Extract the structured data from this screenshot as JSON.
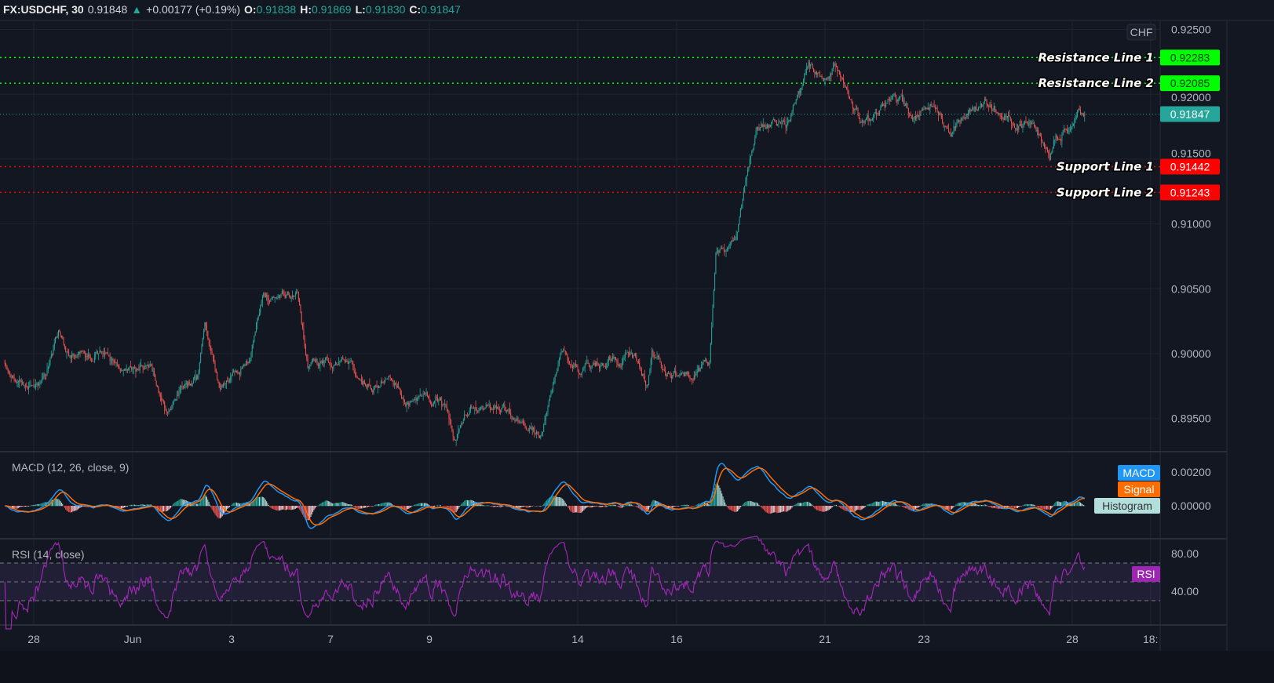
{
  "header": {
    "symbol": "FX:USDCHF, 30",
    "last": "0.91848",
    "change": "+0.00177 (+0.19%)",
    "o_label": "O:",
    "o": "0.91838",
    "h_label": "H:",
    "h": "0.91869",
    "l_label": "L:",
    "l": "0.91830",
    "c_label": "C:",
    "c": "0.91847"
  },
  "currency_badge": "CHF",
  "colors": {
    "background": "#131722",
    "up": "#26a69a",
    "down": "#ef5350",
    "macd": "#2196f3",
    "signal": "#ff6d00",
    "rsi": "#9c27b0",
    "resistance": "#00ff00",
    "support": "#ff0000",
    "last_price": "#26a69a"
  },
  "chart_data": [
    {
      "type": "candlestick",
      "title": "FX:USDCHF, 30",
      "price_axis": {
        "ticks": [
          "0.92500",
          "0.92000",
          "0.91500",
          "0.91000",
          "0.90500",
          "0.90000",
          "0.89500"
        ],
        "range": [
          0.8925,
          0.926
        ]
      },
      "time_axis": {
        "ticks": [
          {
            "label": "28",
            "at": "May 28 00:00"
          },
          {
            "label": "Jun",
            "at": "Jun 1 00:00"
          },
          {
            "label": "3",
            "at": "Jun 3 00:00"
          },
          {
            "label": "7",
            "at": "Jun 7 00:00"
          },
          {
            "label": "9",
            "at": "Jun 9 00:00"
          },
          {
            "label": "14",
            "at": "Jun 14 00:00"
          },
          {
            "label": "16",
            "at": "Jun 16 00:00"
          },
          {
            "label": "21",
            "at": "Jun 21 00:00"
          },
          {
            "label": "23",
            "at": "Jun 23 00:00"
          },
          {
            "label": "28",
            "at": "Jun 28 00:00"
          },
          {
            "label": "18:",
            "at": "Jun 29 14:00"
          }
        ]
      },
      "approx_close_path": [
        [
          "May 27 10:00",
          0.8995
        ],
        [
          "May 27 13:00",
          0.8985
        ],
        [
          "May 27 21:00",
          0.8968
        ],
        [
          "May 28 06:00",
          0.8985
        ],
        [
          "May 28 12:00",
          0.9015
        ],
        [
          "May 28 16:00",
          0.9
        ],
        [
          "May 31 02:00",
          0.8995
        ],
        [
          "May 31 09:00",
          0.9005
        ],
        [
          "May 31 17:00",
          0.8985
        ],
        [
          "Jun 1 08:00",
          0.899
        ],
        [
          "Jun 1 12:00",
          0.8975
        ],
        [
          "Jun 1 16:00",
          0.8955
        ],
        [
          "Jun 1 23:00",
          0.897
        ],
        [
          "Jun 2 07:00",
          0.898
        ],
        [
          "Jun 2 11:00",
          0.902
        ],
        [
          "Jun 2 18:00",
          0.8975
        ],
        [
          "Jun 3 02:00",
          0.8985
        ],
        [
          "Jun 3 09:00",
          0.9
        ],
        [
          "Jun 3 15:00",
          0.905
        ],
        [
          "Jun 3 21:00",
          0.904
        ],
        [
          "Jun 4 08:00",
          0.9048
        ],
        [
          "Jun 4 13:00",
          0.899
        ],
        [
          "Jun 7 00:00",
          0.8995
        ],
        [
          "Jun 7 07:00",
          0.9
        ],
        [
          "Jun 7 15:00",
          0.8975
        ],
        [
          "Jun 8 06:00",
          0.898
        ],
        [
          "Jun 8 14:00",
          0.896
        ],
        [
          "Jun 9 05:00",
          0.8965
        ],
        [
          "Jun 9 13:00",
          0.8935
        ],
        [
          "Jun 9 20:00",
          0.896
        ],
        [
          "Jun 10 11:00",
          0.896
        ],
        [
          "Jun 10 19:00",
          0.895
        ],
        [
          "Jun 11 06:00",
          0.8935
        ],
        [
          "Jun 11 10:00",
          0.896
        ],
        [
          "Jun 11 16:00",
          0.8995
        ],
        [
          "Jun 14 02:00",
          0.8985
        ],
        [
          "Jun 14 17:00",
          0.8998
        ],
        [
          "Jun 15 04:00",
          0.8995
        ],
        [
          "Jun 15 10:00",
          0.8975
        ],
        [
          "Jun 15 12:00",
          0.9
        ],
        [
          "Jun 15 19:00",
          0.8985
        ],
        [
          "Jun 16 07:00",
          0.8985
        ],
        [
          "Jun 16 16:00",
          0.899
        ],
        [
          "Jun 16 19:00",
          0.9075
        ],
        [
          "Jun 17 04:00",
          0.9085
        ],
        [
          "Jun 17 06:00",
          0.91
        ],
        [
          "Jun 17 10:00",
          0.914
        ],
        [
          "Jun 17 15:00",
          0.9175
        ],
        [
          "Jun 18 05:00",
          0.9178
        ],
        [
          "Jun 18 12:00",
          0.92
        ],
        [
          "Jun 18 16:00",
          0.922
        ],
        [
          "Jun 21 00:00",
          0.9215
        ],
        [
          "Jun 21 05:00",
          0.9225
        ],
        [
          "Jun 21 11:00",
          0.92
        ],
        [
          "Jun 21 17:00",
          0.918
        ],
        [
          "Jun 21 22:00",
          0.918
        ],
        [
          "Jun 22 10:00",
          0.92
        ],
        [
          "Jun 22 19:00",
          0.918
        ],
        [
          "Jun 23 03:00",
          0.9195
        ],
        [
          "Jun 23 13:00",
          0.9175
        ],
        [
          "Jun 23 20:00",
          0.9185
        ],
        [
          "Jun 24 08:00",
          0.9195
        ],
        [
          "Jun 24 19:00",
          0.918
        ],
        [
          "Jun 25 06:00",
          0.9175
        ],
        [
          "Jun 25 13:00",
          0.915
        ],
        [
          "Jun 25 16:00",
          0.917
        ],
        [
          "Jun 28 00:00",
          0.9178
        ],
        [
          "Jun 28 03:00",
          0.919
        ],
        [
          "Jun 28 06:00",
          0.91847
        ]
      ],
      "last_price": {
        "value": 0.91847,
        "label": "0.91847"
      },
      "levels": [
        {
          "name": "Resistance Line 1",
          "value": 0.92283,
          "label": "0.92283",
          "kind": "resistance"
        },
        {
          "name": "Resistance Line 2",
          "value": 0.92085,
          "label": "0.92085",
          "kind": "resistance"
        },
        {
          "name": "Support Line 1",
          "value": 0.91442,
          "label": "0.91442",
          "kind": "support"
        },
        {
          "name": "Support Line 2",
          "value": 0.91243,
          "label": "0.91243",
          "kind": "support"
        }
      ]
    },
    {
      "type": "line",
      "title": "MACD (12, 26, close, 9)",
      "axis_ticks": [
        "0.00200",
        "0.00000"
      ],
      "legend": [
        "MACD",
        "Signal",
        "Histogram"
      ],
      "params": {
        "fast": 12,
        "slow": 26,
        "signal": 9
      }
    },
    {
      "type": "line",
      "title": "RSI (14, close)",
      "axis_ticks": [
        "80.00",
        "40.00"
      ],
      "bands": [
        70,
        50,
        30
      ],
      "legend": [
        "RSI"
      ],
      "params": {
        "length": 14
      }
    }
  ]
}
